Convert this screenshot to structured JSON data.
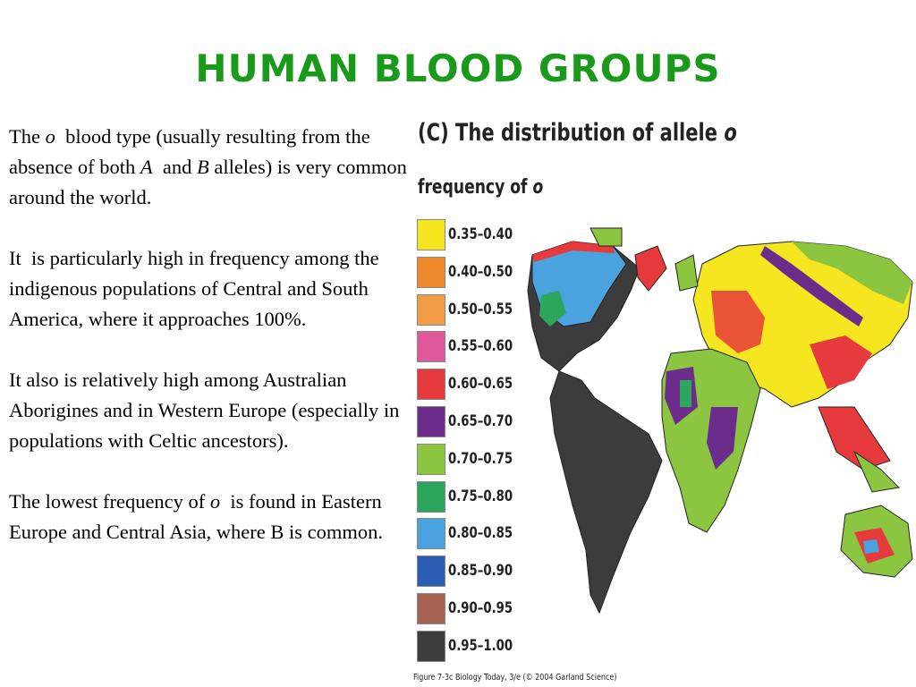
{
  "title": "HUMAN BLOOD GROUPS",
  "paragraphs": [
    [
      {
        "text": "The "
      },
      {
        "text": "o",
        "italic": true
      },
      {
        "text": "  blood type (usually resulting from the absence of both "
      },
      {
        "text": "A",
        "italic": true
      },
      {
        "text": "  and "
      },
      {
        "text": "B",
        "italic": true
      },
      {
        "text": " alleles) is very common around the world."
      }
    ],
    [
      {
        "text": "It  is particularly high in frequency among the indigenous populations of Central and South America, where it approaches 100%."
      }
    ],
    [
      {
        "text": "It also is relatively high among Australian Aborigines and in Western Europe (especially in populations with Celtic ancestors)."
      }
    ],
    [
      {
        "text": "The lowest frequency of "
      },
      {
        "text": "o",
        "italic": true
      },
      {
        "text": "  is found in Eastern Europe and Central Asia, where B is common."
      }
    ]
  ],
  "figure": {
    "title": [
      {
        "text": "(C) The distribution of allele "
      },
      {
        "text": "o",
        "italic": true
      }
    ],
    "legend_title": [
      {
        "text": "frequency of "
      },
      {
        "text": "o",
        "italic": true
      }
    ],
    "legend": [
      {
        "label": "0.35–0.40",
        "color": "#f6e620"
      },
      {
        "label": "0.40–0.50",
        "color": "#ef8a2c"
      },
      {
        "label": "0.50–0.55",
        "color": "#f29c46"
      },
      {
        "label": "0.55–0.60",
        "color": "#e0579c"
      },
      {
        "label": "0.60–0.65",
        "color": "#e63a3c"
      },
      {
        "label": "0.65–0.70",
        "color": "#6b2c8c"
      },
      {
        "label": "0.70–0.75",
        "color": "#8cc640"
      },
      {
        "label": "0.75–0.80",
        "color": "#2ba65c"
      },
      {
        "label": "0.80–0.85",
        "color": "#4aa2de"
      },
      {
        "label": "0.85–0.90",
        "color": "#2a5cb2"
      },
      {
        "label": "0.90–0.95",
        "color": "#a86252"
      },
      {
        "label": "0.95–1.00",
        "color": "#3c3c3c"
      }
    ],
    "caption": "Figure 7-3c  Biology Today, 3/e (© 2004 Garland Science)"
  }
}
